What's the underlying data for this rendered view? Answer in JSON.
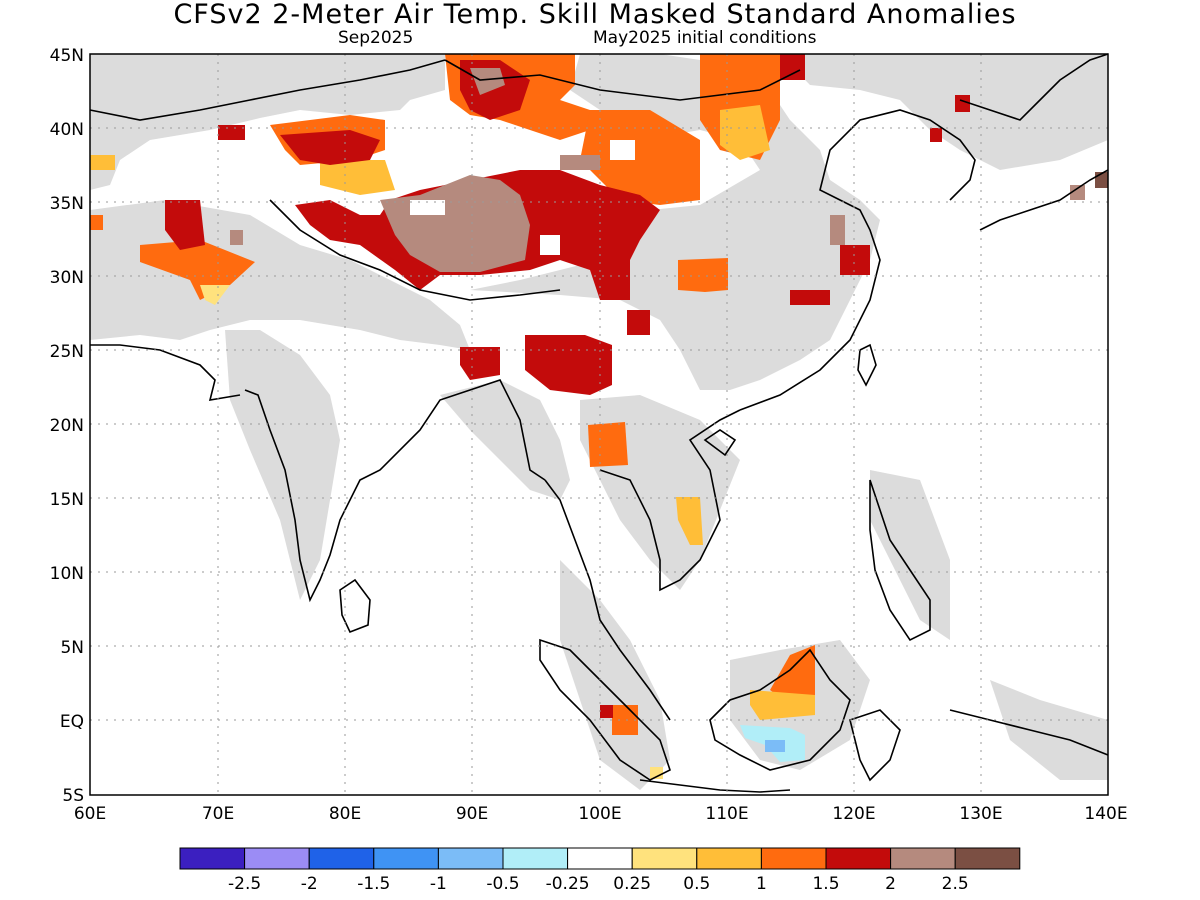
{
  "title": "CFSv2 2-Meter Air Temp. Skill Masked Standard Anomalies",
  "subtitle_left": "Sep2025",
  "subtitle_right": "May2025 initial conditions",
  "map": {
    "lon_ticks": [
      "60E",
      "70E",
      "80E",
      "90E",
      "100E",
      "110E",
      "120E",
      "130E",
      "140E"
    ],
    "lat_ticks": [
      "45N",
      "40N",
      "35N",
      "30N",
      "25N",
      "20N",
      "15N",
      "10N",
      "5N",
      "EQ",
      "5S"
    ],
    "mask_color": "#dcdcdc",
    "land_outline_color": "#000000"
  },
  "legend": {
    "colors": [
      "#3b1fc0",
      "#9b8cf5",
      "#1f62e8",
      "#3f93f4",
      "#7bbcf7",
      "#b1eef8",
      "#ffffff",
      "#ffe27d",
      "#ffbe38",
      "#ff6b0f",
      "#c30b0b",
      "#b58a7e",
      "#7b4f43"
    ],
    "labels": [
      "-2.5",
      "-2",
      "-1.5",
      "-1",
      "-0.5",
      "-0.25",
      "0.25",
      "0.5",
      "1",
      "1.5",
      "2",
      "2.5"
    ]
  }
}
